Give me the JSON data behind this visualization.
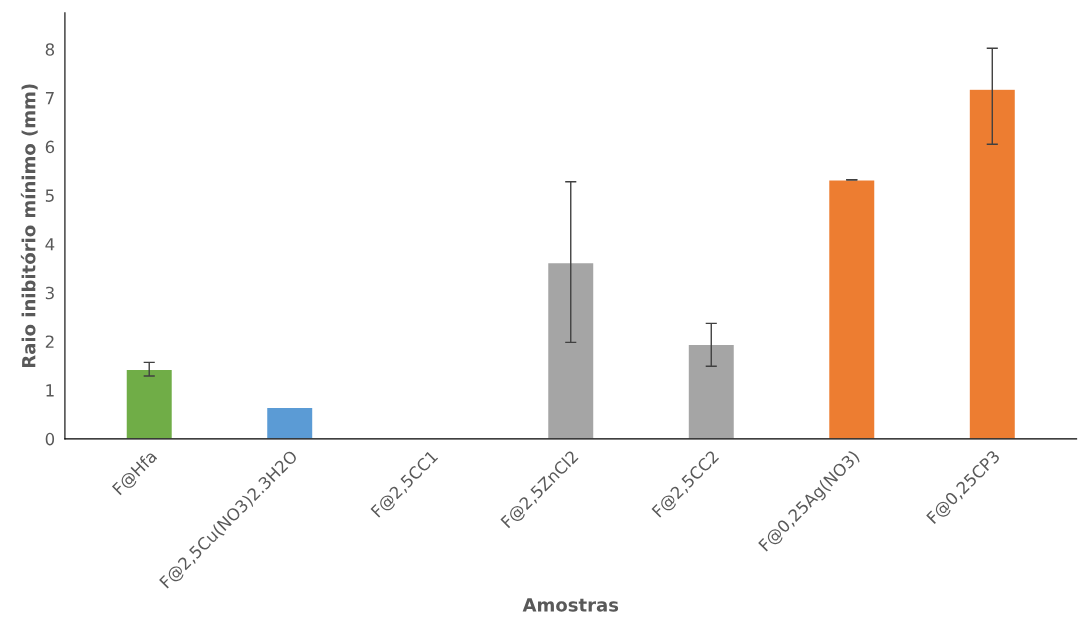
{
  "chart_data": {
    "type": "bar",
    "xlabel": "Amostras",
    "ylabel": "Raio inibitório mínimo (mm)",
    "categories": [
      "F@Hfa",
      "F@2,5Cu(NO3)2.3H2O",
      "F@2,5CC1",
      "F@2,5ZnCl2",
      "F@2,5CC2",
      "F@0,25Ag(NO3)",
      "F@0,25CP3"
    ],
    "values": [
      1.43,
      0.65,
      0,
      3.62,
      1.94,
      5.32,
      7.18
    ],
    "errors": [
      [
        1.29,
        1.57
      ],
      null,
      null,
      [
        1.98,
        5.28
      ],
      [
        1.49,
        2.37
      ],
      [
        5.32,
        5.32
      ],
      [
        6.05,
        8.02
      ]
    ],
    "colors": [
      "#70ad47",
      "#5b9bd5",
      null,
      "#a5a5a5",
      "#a5a5a5",
      "#ed7d31",
      "#ed7d31"
    ],
    "ylim": [
      0,
      8.75
    ],
    "yticks": [
      0,
      1,
      2,
      3,
      4,
      5,
      6,
      7,
      8
    ],
    "grid": false,
    "legend": false
  }
}
